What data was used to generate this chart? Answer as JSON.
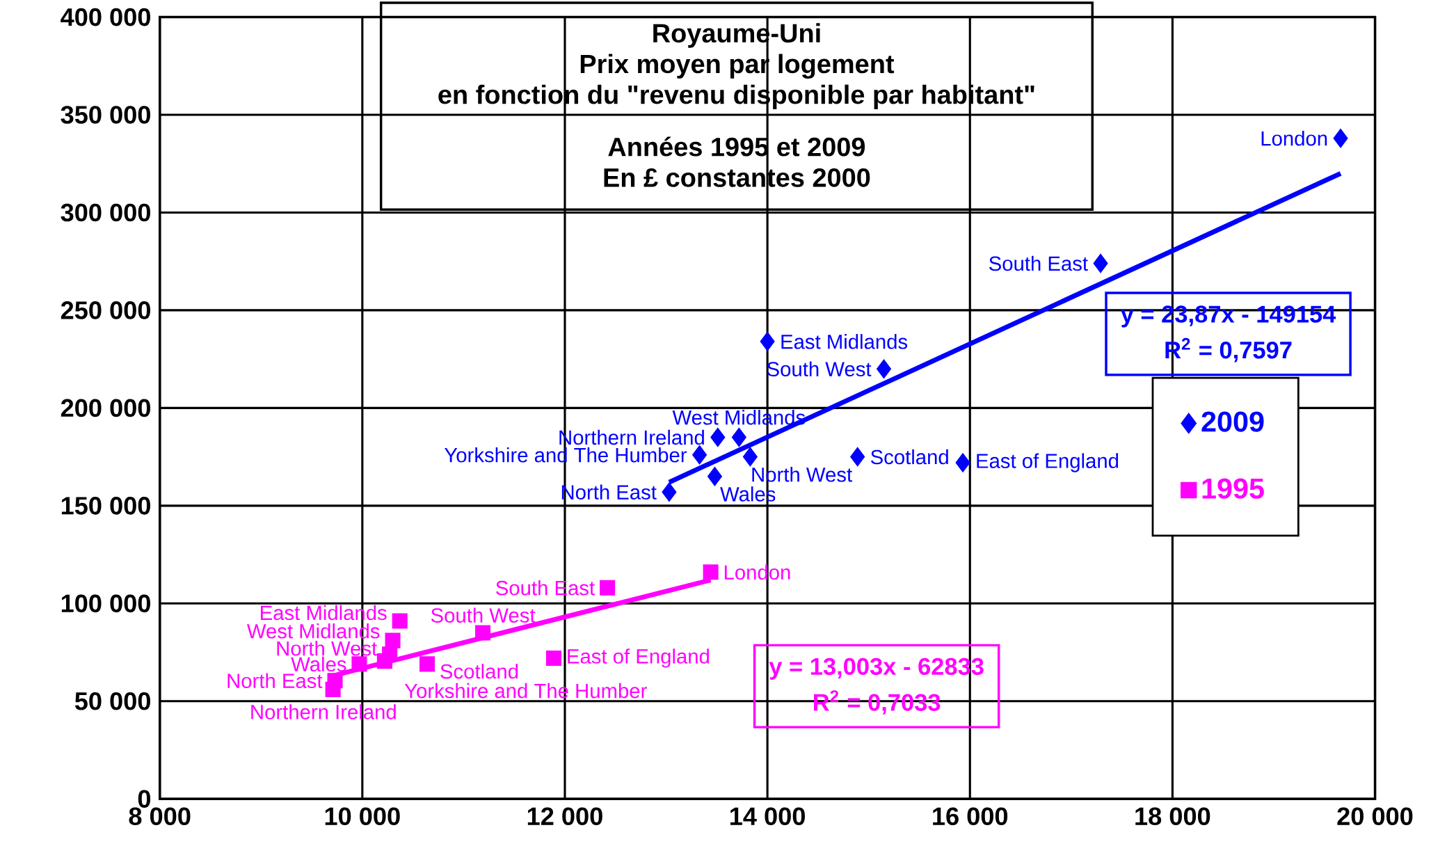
{
  "chart_data": {
    "type": "scatter",
    "title": "Royaume-Uni",
    "subtitle": "Prix moyen par logement",
    "xlim": [
      8000,
      20000
    ],
    "xticks": [
      {
        "value": 8000,
        "label": "8 000"
      },
      {
        "value": 10000,
        "label": "10 000"
      },
      {
        "value": 12000,
        "label": "12 000"
      },
      {
        "value": 14000,
        "label": "14 000"
      },
      {
        "value": 16000,
        "label": "16 000"
      },
      {
        "value": 18000,
        "label": "18 000"
      },
      {
        "value": 20000,
        "label": "20 000"
      }
    ],
    "ylim": [
      0,
      400000
    ],
    "yticks": [
      0,
      {
        "value": 50000,
        "label": "50 000"
      },
      {
        "value": 100000,
        "label": "100 000"
      },
      {
        "value": 150000,
        "label": "150 000"
      },
      {
        "value": 200000,
        "label": "200 000"
      },
      {
        "value": 250000,
        "label": "250 000"
      },
      {
        "value": 300000,
        "label": "300 000"
      },
      {
        "value": 350000,
        "label": "350 000"
      },
      {
        "value": 400000,
        "label": "400 000"
      }
    ],
    "grid": true,
    "legend": "right",
    "series": [
      {
        "name": "2009",
        "color": "#0000ff",
        "marker": "diamond",
        "x": [
          19660,
          17290,
          14000,
          15150,
          13510,
          13720,
          13330,
          13830,
          14890,
          15930,
          13480,
          13030
        ],
        "values": [
          338000,
          274000,
          234000,
          220000,
          185000,
          185000,
          176000,
          175000,
          175000,
          172000,
          165000,
          157000
        ]
      },
      {
        "name": "1995",
        "color": "#ff00ff",
        "marker": "square",
        "x": [
          13440,
          12420,
          10370,
          11190,
          10300,
          10270,
          10220,
          9970,
          10640,
          11890,
          9730,
          9710
        ],
        "values": [
          116000,
          108000,
          91000,
          85000,
          81000,
          74000,
          70500,
          69000,
          69000,
          72000,
          60500,
          56000
        ]
      },
      {
        "type": "line",
        "color": "#0000ff",
        "marker": "none",
        "x": [
          13030,
          19660
        ],
        "values": [
          162000,
          320000
        ]
      },
      {
        "type": "line",
        "color": "#ff00ff",
        "marker": "none",
        "x": [
          9710,
          13440
        ],
        "values": [
          63000,
          112000
        ]
      }
    ],
    "annotations": [
      "en fonction du \"revenu disponible par habitant\"",
      "Années 1995 et 2009",
      "En £ constantes 2000",
      "y = 23,87x - 149154",
      "R$^{2}$ = 0,7597",
      "y = 13,003x - 62833",
      "R$^{2}$ = 0,7033",
      {
        "text": "London",
        "x": 19660,
        "y": 338000
      },
      {
        "text": "South East",
        "x": 17290,
        "y": 274000
      },
      {
        "text": "East Midlands",
        "x": 14000,
        "y": 234000
      },
      {
        "text": "South West",
        "x": 15150,
        "y": 220000
      },
      {
        "text": "Northern Ireland",
        "x": 13510,
        "y": 185000
      },
      {
        "text": "West Midlands",
        "x": 13720,
        "y": 185000
      },
      {
        "text": "Yorkshire and The Humber",
        "x": 13330,
        "y": 176000
      },
      {
        "text": "North West",
        "x": 13830,
        "y": 175000
      },
      {
        "text": "Scotland",
        "x": 14890,
        "y": 175000
      },
      {
        "text": "East of England",
        "x": 15930,
        "y": 172000
      },
      {
        "text": "Wales",
        "x": 13480,
        "y": 165000
      },
      {
        "text": "North East",
        "x": 13030,
        "y": 157000
      },
      {
        "text": "London",
        "x": 13440,
        "y": 116000
      },
      {
        "text": "South East",
        "x": 12420,
        "y": 108000
      },
      {
        "text": "East Midlands",
        "x": 10370,
        "y": 91000
      },
      {
        "text": "South West",
        "x": 11190,
        "y": 85000
      },
      {
        "text": "West Midlands",
        "x": 10300,
        "y": 81000
      },
      {
        "text": "North West",
        "x": 10270,
        "y": 74000
      },
      {
        "text": "Yorkshire and The Humber",
        "x": 10220,
        "y": 70500
      },
      {
        "text": "Wales",
        "x": 9970,
        "y": 69000
      },
      {
        "text": "Scotland",
        "x": 10640,
        "y": 69000
      },
      {
        "text": "East of England",
        "x": 11890,
        "y": 72000
      },
      {
        "text": "North East",
        "x": 9730,
        "y": 60500
      },
      {
        "text": "Northern Ireland",
        "x": 9710,
        "y": 56000
      }
    ]
  }
}
